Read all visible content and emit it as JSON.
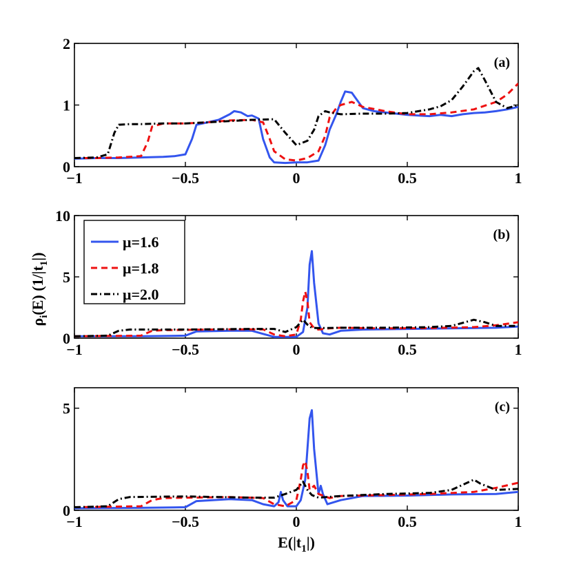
{
  "colors": {
    "mu16": "#3355ee",
    "mu18": "#ee1111",
    "mu20": "#000000"
  },
  "chart_data": [
    {
      "panel": "(a)",
      "type": "line",
      "xlim": [
        -1,
        1
      ],
      "ylim": [
        0,
        2
      ],
      "xticks": [
        "-1",
        "-0.5",
        "0",
        "0.5",
        "1"
      ],
      "yticks": [
        {
          "value": 0,
          "label": "0"
        },
        {
          "value": 1,
          "label": "1"
        },
        {
          "value": 2,
          "label": "2"
        }
      ],
      "series": [
        {
          "name": "μ=1.6",
          "color": "#3355ee",
          "style": "solid",
          "x": [
            -1,
            -0.9,
            -0.8,
            -0.7,
            -0.6,
            -0.55,
            -0.5,
            -0.47,
            -0.45,
            -0.4,
            -0.35,
            -0.3,
            -0.28,
            -0.25,
            -0.22,
            -0.2,
            -0.17,
            -0.15,
            -0.12,
            -0.1,
            -0.05,
            0,
            0.05,
            0.1,
            0.13,
            0.15,
            0.18,
            0.2,
            0.22,
            0.25,
            0.27,
            0.3,
            0.35,
            0.4,
            0.45,
            0.5,
            0.55,
            0.6,
            0.65,
            0.7,
            0.75,
            0.8,
            0.85,
            0.9,
            0.95,
            1
          ],
          "y": [
            0.13,
            0.14,
            0.14,
            0.15,
            0.16,
            0.17,
            0.2,
            0.45,
            0.68,
            0.72,
            0.76,
            0.85,
            0.9,
            0.88,
            0.82,
            0.83,
            0.78,
            0.45,
            0.15,
            0.07,
            0.06,
            0.07,
            0.07,
            0.1,
            0.35,
            0.6,
            0.85,
            1.05,
            1.22,
            1.2,
            1.1,
            0.95,
            0.9,
            0.88,
            0.86,
            0.84,
            0.83,
            0.82,
            0.84,
            0.82,
            0.85,
            0.87,
            0.88,
            0.9,
            0.93,
            0.97
          ]
        },
        {
          "name": "μ=1.8",
          "color": "#ee1111",
          "style": "dashed",
          "x": [
            -1,
            -0.9,
            -0.8,
            -0.7,
            -0.67,
            -0.65,
            -0.6,
            -0.5,
            -0.4,
            -0.3,
            -0.2,
            -0.15,
            -0.12,
            -0.1,
            -0.05,
            0,
            0.05,
            0.1,
            0.13,
            0.15,
            0.18,
            0.2,
            0.25,
            0.3,
            0.4,
            0.5,
            0.6,
            0.7,
            0.8,
            0.9,
            0.95,
            1
          ],
          "y": [
            0.14,
            0.14,
            0.15,
            0.17,
            0.4,
            0.65,
            0.7,
            0.7,
            0.72,
            0.75,
            0.76,
            0.72,
            0.45,
            0.25,
            0.12,
            0.1,
            0.14,
            0.25,
            0.5,
            0.8,
            0.95,
            1.0,
            1.05,
            0.97,
            0.9,
            0.85,
            0.85,
            0.88,
            0.93,
            1.05,
            1.17,
            1.35
          ]
        },
        {
          "name": "μ=2.0",
          "color": "#000000",
          "style": "dashdot",
          "x": [
            -1,
            -0.9,
            -0.85,
            -0.82,
            -0.8,
            -0.75,
            -0.7,
            -0.6,
            -0.5,
            -0.4,
            -0.3,
            -0.2,
            -0.1,
            -0.05,
            0,
            0.05,
            0.08,
            0.1,
            0.13,
            0.15,
            0.2,
            0.3,
            0.4,
            0.5,
            0.6,
            0.65,
            0.7,
            0.75,
            0.8,
            0.82,
            0.85,
            0.9,
            0.95,
            1
          ],
          "y": [
            0.14,
            0.15,
            0.2,
            0.55,
            0.68,
            0.69,
            0.69,
            0.7,
            0.7,
            0.72,
            0.74,
            0.76,
            0.77,
            0.55,
            0.35,
            0.42,
            0.6,
            0.82,
            0.9,
            0.88,
            0.85,
            0.86,
            0.86,
            0.87,
            0.93,
            0.98,
            1.08,
            1.3,
            1.55,
            1.6,
            1.4,
            1.05,
            0.95,
            1.0
          ]
        }
      ]
    },
    {
      "panel": "(b)",
      "type": "line",
      "xlim": [
        -1,
        1
      ],
      "ylim": [
        0,
        10
      ],
      "xticks": [
        "-1",
        "-0.5",
        "0",
        "0.5",
        "1"
      ],
      "yticks": [
        {
          "value": 0,
          "label": "0"
        },
        {
          "value": 5,
          "label": "5"
        },
        {
          "value": 10,
          "label": "10"
        }
      ],
      "legend": [
        "μ=1.6",
        "μ=1.8",
        "μ=2.0"
      ],
      "series": [
        {
          "name": "μ=1.6",
          "color": "#3355ee",
          "style": "solid",
          "x": [
            -1,
            -0.7,
            -0.5,
            -0.45,
            -0.3,
            -0.2,
            -0.15,
            -0.1,
            0,
            0.03,
            0.05,
            0.06,
            0.07,
            0.08,
            0.1,
            0.12,
            0.15,
            0.2,
            0.3,
            0.5,
            0.7,
            0.9,
            1
          ],
          "y": [
            0.15,
            0.15,
            0.2,
            0.55,
            0.6,
            0.6,
            0.35,
            0.1,
            0.1,
            0.5,
            2.5,
            6.0,
            7.1,
            4.5,
            1.2,
            0.4,
            0.3,
            0.6,
            0.7,
            0.75,
            0.8,
            0.85,
            0.95
          ]
        },
        {
          "name": "μ=1.8",
          "color": "#ee1111",
          "style": "dashed",
          "x": [
            -1,
            -0.7,
            -0.65,
            -0.6,
            -0.3,
            -0.15,
            -0.1,
            -0.05,
            0,
            0.02,
            0.03,
            0.04,
            0.05,
            0.06,
            0.08,
            0.1,
            0.15,
            0.2,
            0.4,
            0.6,
            0.8,
            0.9,
            1
          ],
          "y": [
            0.15,
            0.2,
            0.6,
            0.65,
            0.72,
            0.72,
            0.3,
            0.15,
            0.3,
            1.5,
            3.0,
            3.8,
            3.0,
            1.3,
            0.8,
            0.7,
            0.8,
            0.85,
            0.8,
            0.82,
            0.9,
            1.05,
            1.3
          ]
        },
        {
          "name": "μ=2.0",
          "color": "#000000",
          "style": "dashdot",
          "x": [
            -1,
            -0.85,
            -0.8,
            -0.75,
            -0.5,
            -0.2,
            -0.1,
            -0.05,
            0,
            0.03,
            0.05,
            0.07,
            0.1,
            0.2,
            0.4,
            0.6,
            0.7,
            0.8,
            0.85,
            0.9,
            1
          ],
          "y": [
            0.15,
            0.2,
            0.6,
            0.7,
            0.7,
            0.75,
            0.75,
            0.5,
            0.9,
            1.5,
            1.1,
            0.85,
            0.82,
            0.85,
            0.85,
            0.9,
            1.0,
            1.5,
            1.3,
            1.0,
            1.0
          ]
        }
      ]
    },
    {
      "panel": "(c)",
      "type": "line",
      "xlim": [
        -1,
        1
      ],
      "ylim": [
        0,
        6
      ],
      "xticks": [
        "-1",
        "-0.5",
        "0",
        "0.5",
        "1"
      ],
      "yticks": [
        {
          "value": 0,
          "label": "0"
        },
        {
          "value": 5,
          "label": "5"
        }
      ],
      "xlabel": "E(|t₁|)",
      "series": [
        {
          "name": "μ=1.6",
          "color": "#3355ee",
          "style": "solid",
          "x": [
            -1,
            -0.7,
            -0.5,
            -0.45,
            -0.3,
            -0.2,
            -0.15,
            -0.1,
            -0.08,
            -0.07,
            -0.06,
            -0.04,
            0,
            0.02,
            0.04,
            0.05,
            0.06,
            0.07,
            0.08,
            0.1,
            0.11,
            0.12,
            0.14,
            0.2,
            0.3,
            0.5,
            0.7,
            0.9,
            1
          ],
          "y": [
            0.1,
            0.12,
            0.15,
            0.45,
            0.55,
            0.5,
            0.3,
            0.2,
            0.4,
            0.9,
            0.5,
            0.2,
            0.2,
            0.5,
            1.5,
            3.0,
            4.5,
            4.9,
            3.0,
            0.8,
            1.2,
            0.8,
            0.3,
            0.5,
            0.7,
            0.72,
            0.78,
            0.8,
            0.9
          ]
        },
        {
          "name": "μ=1.8",
          "color": "#ee1111",
          "style": "dashed",
          "x": [
            -1,
            -0.7,
            -0.65,
            -0.6,
            -0.3,
            -0.15,
            -0.1,
            -0.05,
            0,
            0.02,
            0.03,
            0.04,
            0.05,
            0.06,
            0.08,
            0.1,
            0.15,
            0.2,
            0.4,
            0.6,
            0.8,
            0.9,
            1
          ],
          "y": [
            0.15,
            0.2,
            0.5,
            0.6,
            0.65,
            0.6,
            0.3,
            0.2,
            0.5,
            1.5,
            2.2,
            2.4,
            1.9,
            1.0,
            1.2,
            0.8,
            0.6,
            0.7,
            0.75,
            0.8,
            0.9,
            1.1,
            1.35
          ]
        },
        {
          "name": "μ=2.0",
          "color": "#000000",
          "style": "dashdot",
          "x": [
            -1,
            -0.85,
            -0.8,
            -0.75,
            -0.5,
            -0.2,
            -0.1,
            -0.05,
            0,
            0.03,
            0.05,
            0.07,
            0.1,
            0.2,
            0.4,
            0.6,
            0.7,
            0.8,
            0.83,
            0.9,
            1
          ],
          "y": [
            0.15,
            0.2,
            0.55,
            0.65,
            0.68,
            0.62,
            0.62,
            0.8,
            1.0,
            1.4,
            1.0,
            0.75,
            0.62,
            0.7,
            0.8,
            0.85,
            1.0,
            1.5,
            1.3,
            1.0,
            1.05
          ]
        }
      ]
    }
  ],
  "shared_ylabel": {
    "prefix": "ρ",
    "sub_i": "i",
    "mid": "(E) (1/|t",
    "sub_1": "1",
    "suffix": "|)"
  },
  "xlabel_parts": {
    "prefix": "E(|t",
    "sub": "1",
    "suffix": "|)"
  }
}
